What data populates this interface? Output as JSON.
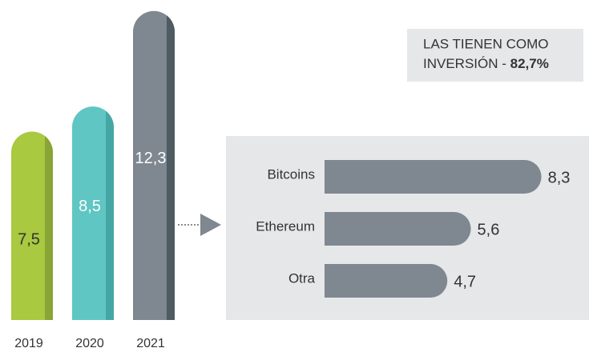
{
  "chart_data": [
    {
      "type": "column",
      "categories": [
        "2019",
        "2020",
        "2021"
      ],
      "values": [
        7.5,
        8.5,
        12.3
      ],
      "value_labels": [
        "7,5",
        "8,5",
        "12,3"
      ],
      "colors": [
        "#a8c940",
        "#5fc6c3",
        "#7f8790"
      ],
      "shade_colors": [
        "#88a535",
        "#45a6a3",
        "#4f5a61"
      ],
      "label_colors": [
        "#333333",
        "#ffffff",
        "#ffffff"
      ]
    },
    {
      "type": "hbar",
      "categories": [
        "Bitcoins",
        "Ethereum",
        "Otra"
      ],
      "values": [
        8.3,
        5.6,
        4.7
      ],
      "value_labels": [
        "8,3",
        "5,6",
        "4,7"
      ],
      "color": "#7f8790",
      "annotation": [
        "LAS TIENEN COMO",
        "INVERSIÓN - ",
        "82,7%"
      ]
    }
  ]
}
